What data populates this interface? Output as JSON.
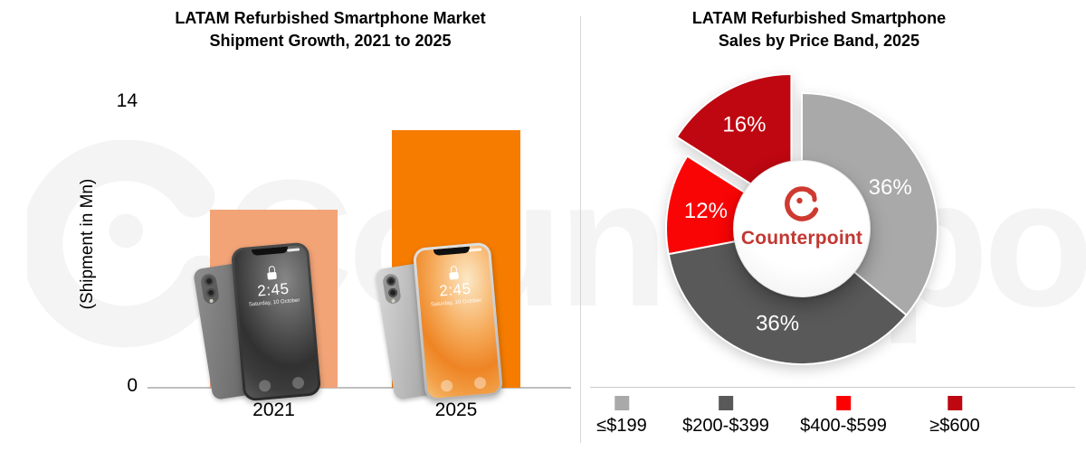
{
  "watermark": {
    "text": "Counterpoint"
  },
  "chart_data": [
    {
      "type": "bar",
      "title": "LATAM Refurbished Smartphone Market Shipment Growth, 2021 to 2025",
      "title_line1": "LATAM Refurbished Smartphone Market",
      "title_line2": "Shipment Growth, 2021 to 2025",
      "ylabel": "(Shipment in Mn)",
      "xlabel": "",
      "y_ticks": [
        "14",
        "0"
      ],
      "ylim": [
        0,
        14
      ],
      "grid": false,
      "categories": [
        "2021",
        "2025"
      ],
      "values": [
        8.7,
        12.6
      ],
      "bar_colors": [
        "#F2A477",
        "#F67C00"
      ],
      "bar_overlay": {
        "description": "smartphone-lockscreen-image",
        "time": "2:45",
        "date": "Saturday, 10 October"
      }
    },
    {
      "type": "pie",
      "donut": true,
      "title": "LATAM Refurbished Smartphone Sales by Price Band, 2025",
      "title_line1": "LATAM Refurbished Smartphone",
      "title_line2": "Sales by Price Band, 2025",
      "start_angle_deg": 0,
      "direction": "clockwise",
      "legend_position": "bottom",
      "slices": [
        {
          "label": "≤$199",
          "value": 36,
          "color": "#A9A9A9",
          "exploded": false
        },
        {
          "label": "$200-$399",
          "value": 36,
          "color": "#595959",
          "exploded": false
        },
        {
          "label": "$400-$599",
          "value": 12,
          "color": "#FA0505",
          "exploded": false
        },
        {
          "label": "≥$600",
          "value": 16,
          "color": "#BE0711",
          "exploded": true
        }
      ],
      "center": {
        "logo": "counterpoint-logo",
        "text": "Counterpoint",
        "text_color": "#C23731",
        "logo_color": "#CE3A30"
      }
    }
  ]
}
